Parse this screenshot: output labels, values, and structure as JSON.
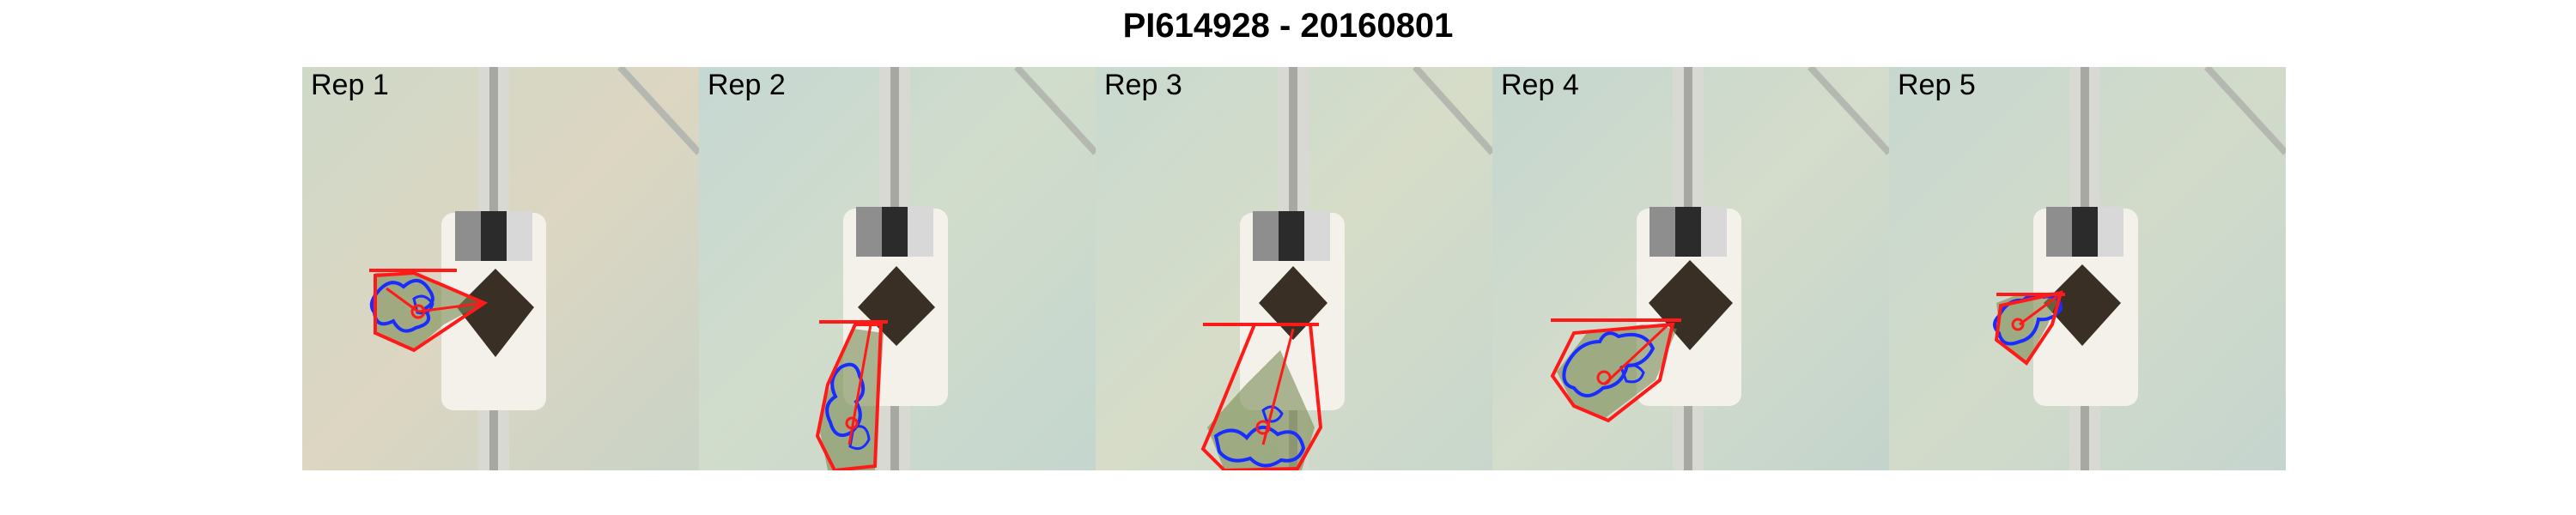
{
  "figure": {
    "title": "PI614928 - 20160801"
  },
  "panels": [
    {
      "label": "Rep 1"
    },
    {
      "label": "Rep 2"
    },
    {
      "label": "Rep 3"
    },
    {
      "label": "Rep 4"
    },
    {
      "label": "Rep 5"
    }
  ],
  "colors": {
    "convex_hull": "#ff1a1a",
    "plant_contour": "#1a2dff",
    "plant_fill": "#7a8a52",
    "background": "#d7dcc9",
    "pot_soil": "#3a2f24",
    "pot_base": "#f3f1ea",
    "rail": "#c9c9c4",
    "color_card_dark": "#2b2b2b",
    "color_card_gray": "#8e8e8e",
    "color_card_light": "#d8d8d8"
  },
  "icons": {
    "hull_overlay": "red-convex-hull-icon",
    "contour_overlay": "blue-leaf-contour-icon"
  }
}
